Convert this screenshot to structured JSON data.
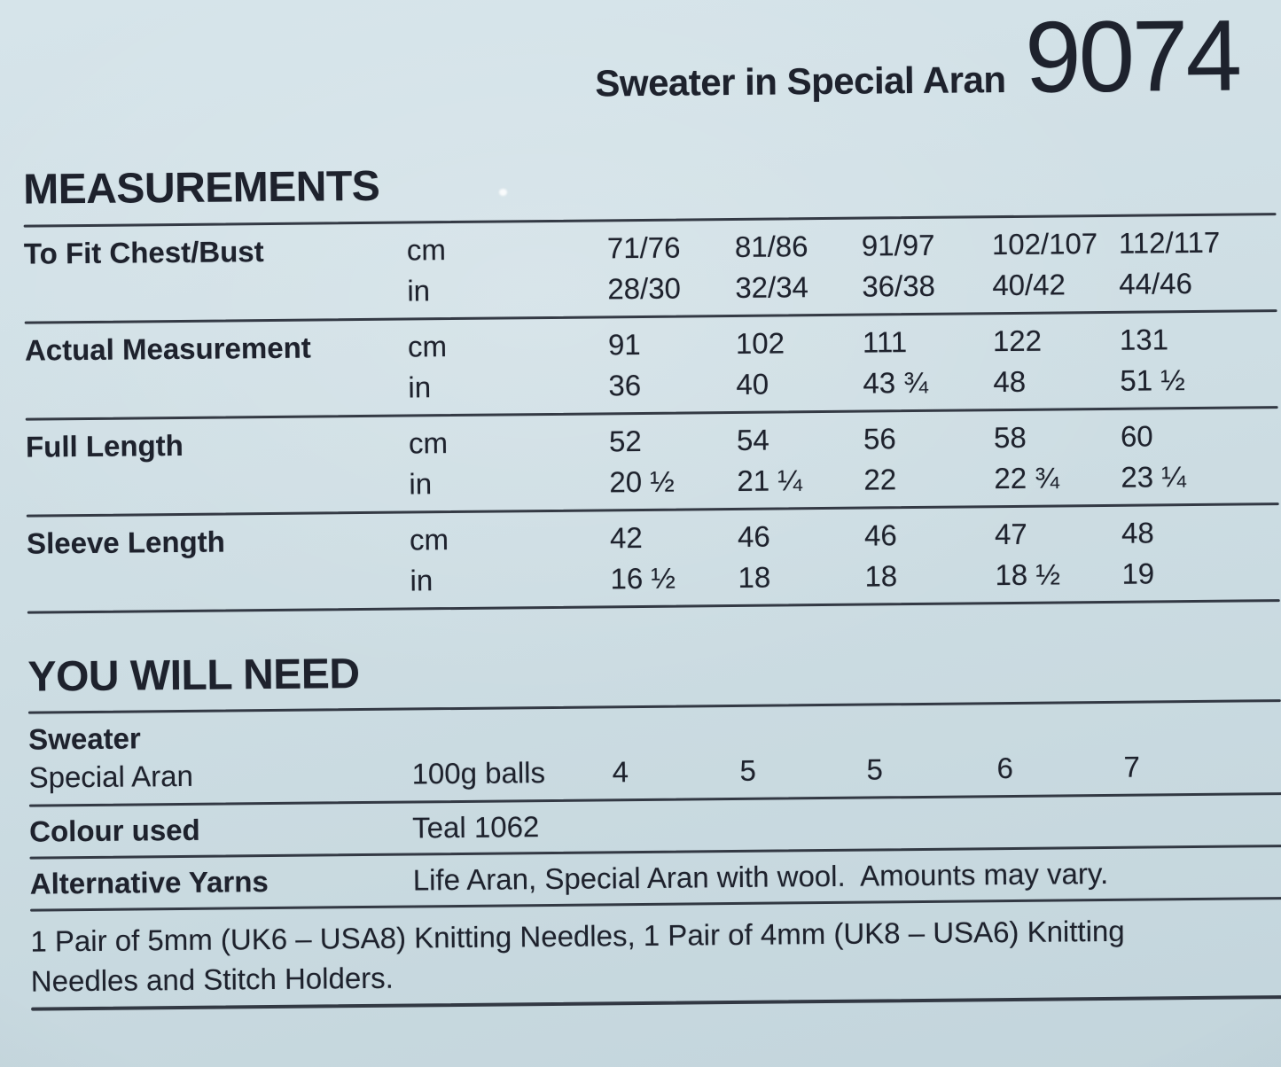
{
  "header": {
    "title": "Sweater in Special Aran",
    "pattern_number": "9074"
  },
  "measurements": {
    "heading": "MEASUREMENTS",
    "unit_labels": {
      "cm": "cm",
      "in": "in"
    },
    "rows": [
      {
        "label": "To Fit Chest/Bust",
        "cm": [
          "71/76",
          "81/86",
          "91/97",
          "102/107",
          "112/117"
        ],
        "in": [
          "28/30",
          "32/34",
          "36/38",
          "40/42",
          "44/46"
        ]
      },
      {
        "label": "Actual Measurement",
        "cm": [
          "91",
          "102",
          "111",
          "122",
          "131"
        ],
        "in": [
          "36",
          "40",
          "43 ¾",
          "48",
          "51 ½"
        ]
      },
      {
        "label": "Full Length",
        "cm": [
          "52",
          "54",
          "56",
          "58",
          "60"
        ],
        "in": [
          "20 ½",
          "21 ¼",
          "22",
          "22 ¾",
          "23 ¼"
        ]
      },
      {
        "label": "Sleeve Length",
        "cm": [
          "42",
          "46",
          "46",
          "47",
          "48"
        ],
        "in": [
          "16 ½",
          "18",
          "18",
          "18 ½",
          "19"
        ]
      }
    ]
  },
  "you_will_need": {
    "heading": "YOU WILL NEED",
    "group_label": "Sweater",
    "yarn_name": "Special Aran",
    "unit_label": "100g balls",
    "balls": [
      "4",
      "5",
      "5",
      "6",
      "7"
    ],
    "colour_label": "Colour used",
    "colour_value": "Teal 1062",
    "alternative_label": "Alternative Yarns",
    "alternative_value": "Life Aran, Special Aran with wool.  Amounts may vary.",
    "needles_line1": "1 Pair of 5mm (UK6 – USA8) Knitting Needles, 1 Pair of 4mm (UK8 – USA6) Knitting",
    "needles_line2": "Needles and Stitch Holders."
  }
}
